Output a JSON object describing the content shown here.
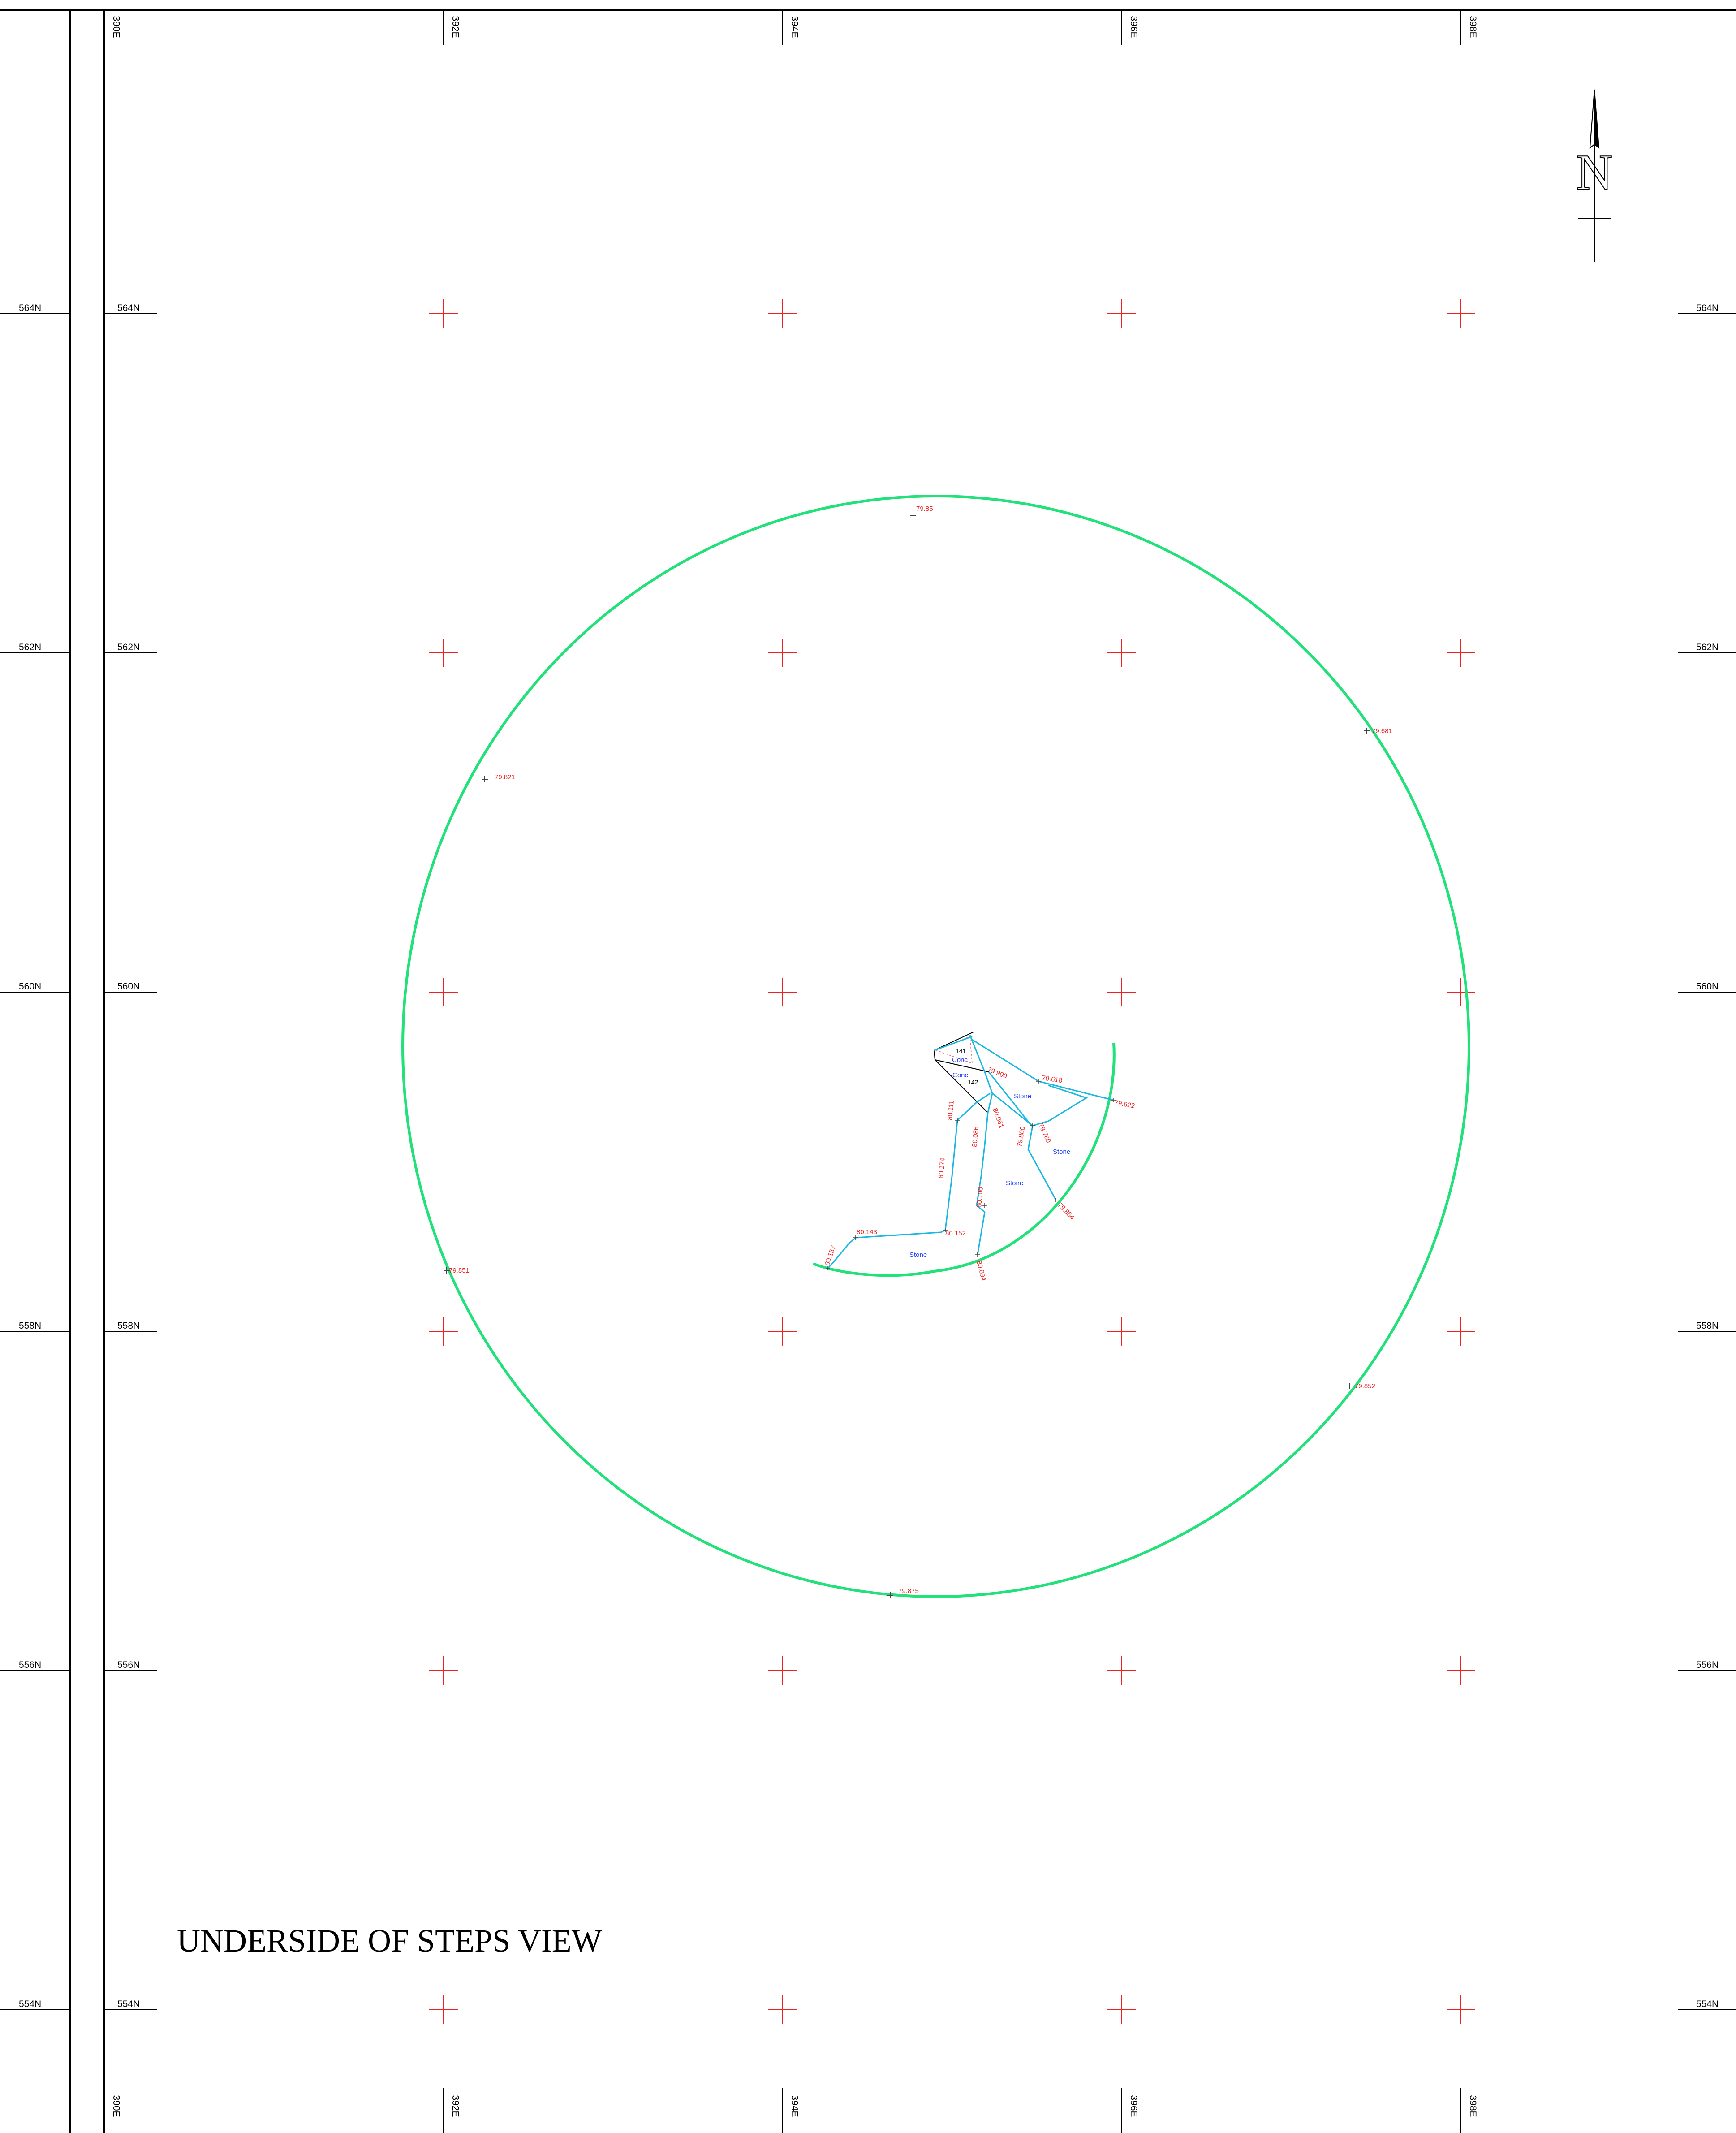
{
  "view_title": "UNDERSIDE OF STEPS VIEW",
  "north_arrow": {
    "label": "N"
  },
  "grid": {
    "easting_labels": [
      "390E",
      "392E",
      "394E",
      "396E",
      "398E"
    ],
    "northing_labels": [
      "564N",
      "562N",
      "560N",
      "558N",
      "556N",
      "554N"
    ]
  },
  "spot_levels": {
    "circle": [
      "79.85",
      "79.681",
      "79.821",
      "79.851",
      "79.852",
      "79.875"
    ],
    "steps": [
      "79.900",
      "79.618",
      "79.622",
      "80.061",
      "79.780",
      "79.800",
      "80.111",
      "80.086",
      "80.174",
      "80.100",
      "79.854",
      "80.143",
      "80.152",
      "80.157",
      "80.094"
    ]
  },
  "materials": {
    "conc": "Conc",
    "stone": "Stone"
  },
  "step_ids": [
    "141",
    "142"
  ],
  "colors": {
    "circle": "#22e07a",
    "steps": "#18b8e0",
    "levels": "#ee2222",
    "grid_marks": "#ee2222",
    "material_text": "#1a3cff",
    "frame": "#000000"
  }
}
